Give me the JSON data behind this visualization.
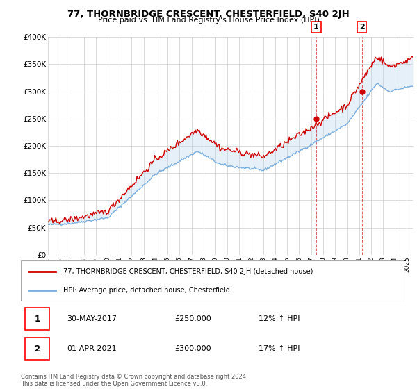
{
  "title": "77, THORNBRIDGE CRESCENT, CHESTERFIELD, S40 2JH",
  "subtitle": "Price paid vs. HM Land Registry's House Price Index (HPI)",
  "ylim": [
    0,
    400000
  ],
  "yticks": [
    0,
    50000,
    100000,
    150000,
    200000,
    250000,
    300000,
    350000,
    400000
  ],
  "ytick_labels": [
    "£0",
    "£50K",
    "£100K",
    "£150K",
    "£200K",
    "£250K",
    "£300K",
    "£350K",
    "£400K"
  ],
  "xlim_start": 1995.0,
  "xlim_end": 2025.5,
  "red_color": "#cc0000",
  "blue_color": "#7aafe0",
  "fill_color": "#b8d4ee",
  "point1_x": 2017.42,
  "point1_y": 250000,
  "point2_x": 2021.25,
  "point2_y": 300000,
  "point1_label": "1",
  "point2_label": "2",
  "legend_red": "77, THORNBRIDGE CRESCENT, CHESTERFIELD, S40 2JH (detached house)",
  "legend_blue": "HPI: Average price, detached house, Chesterfield",
  "annotation1_date": "30-MAY-2017",
  "annotation1_price": "£250,000",
  "annotation1_hpi": "12% ↑ HPI",
  "annotation2_date": "01-APR-2021",
  "annotation2_price": "£300,000",
  "annotation2_hpi": "17% ↑ HPI",
  "footnote": "Contains HM Land Registry data © Crown copyright and database right 2024.\nThis data is licensed under the Open Government Licence v3.0.",
  "grid_color": "#cccccc"
}
